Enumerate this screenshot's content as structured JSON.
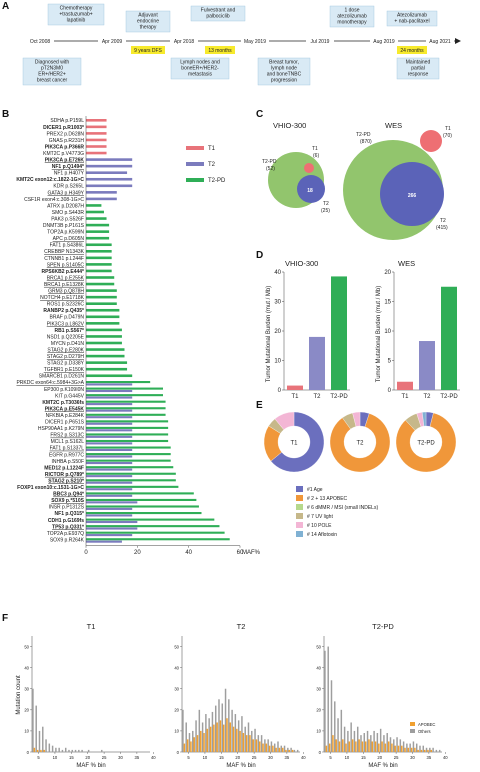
{
  "panels": {
    "A": "A",
    "B": "B",
    "C": "C",
    "D": "D",
    "E": "E",
    "F": "F"
  },
  "timeline": {
    "dates": [
      "Oct 2008",
      "Apr 2009",
      "Apr 2018",
      "May 2019",
      "Jul 2019",
      "Aug 2019",
      "Aug 2021"
    ],
    "top_events": [
      "Chemotherapy\n+trastuzumab+\nlapatinib",
      "Adjuvant\nendocrine\ntherapy",
      "Fulvestrant and\npalbociclib",
      "1 dose\natezolizumab\nmonotherapy",
      "Atezolizumab\n+ nab-paclitaxel"
    ],
    "bottom_events": [
      "Diagnosed with\npT2N3M0\nER+/HER2+\nbreast cancer",
      "Lymph nodes and\nboneER+/HER2-\nmetastasis",
      "Breast tumor,\nlymph node\nand boneTNBC\nprogression",
      "Maintained\npartial\nresponse"
    ],
    "durations": [
      "9 years DFS",
      "13 months",
      "24 months"
    ]
  },
  "panel_b": {
    "legend": [
      "T1",
      "T2",
      "T2-PD"
    ],
    "xlabel": "MAF%",
    "xticks": [
      "0",
      "20",
      "40",
      "60"
    ]
  },
  "panel_c": {
    "left_title": "VHIO-300",
    "right_title": "WES",
    "left": {
      "T1": "T1",
      "T1_count": "(6)",
      "T2PD": "T2-PD",
      "T2PD_count": "(52)",
      "T2": "T2",
      "T2_count": "(25)",
      "overlap": "18"
    },
    "right": {
      "T1": "T1",
      "T1_count": "(70)",
      "T2PD": "T2-PD",
      "T2PD_count": "(870)",
      "T2": "T2",
      "T2_count": "(415)",
      "overlap": "266"
    }
  },
  "panel_d": {
    "ylabel": "Tumor Mutational Burden (mut / Mb)",
    "left_title": "VHIO-300",
    "right_title": "WES"
  },
  "panel_e": {
    "donut_labels": [
      "T1",
      "T2",
      "T2-PD"
    ],
    "legend": [
      "#1 Age",
      "# 2 + 13 APOBEC",
      "# 6 dMMR / MSI (small INDELs)",
      "# 7 UV light",
      "# 10 POLE",
      "# 14 Aflotoxin"
    ]
  },
  "panel_f": {
    "titles": [
      "T1",
      "T2",
      "T2-PD"
    ],
    "ylabel": "Mutation count",
    "xlabel": "MAF % bin",
    "legend": [
      "APOBEC",
      "Others"
    ]
  },
  "chart_data": [
    {
      "type": "bar",
      "id": "B",
      "orientation": "horizontal",
      "xlabel": "MAF%",
      "xlim": [
        0,
        60
      ],
      "series_colors": {
        "T1": "#e8737a",
        "T2": "#7b7bbd",
        "T2-PD": "#2fae57"
      },
      "genes": [
        {
          "name": "SDHA p.P159L",
          "bold": false,
          "ul": false,
          "T1": 8
        },
        {
          "name": "DICER1 p.R1003*",
          "bold": true,
          "ul": false,
          "T1": 8
        },
        {
          "name": "PREX2 p.D628N",
          "bold": false,
          "ul": false,
          "T1": 8
        },
        {
          "name": "GNAS p.R231H",
          "bold": false,
          "ul": false,
          "T1": 8
        },
        {
          "name": "PIK3CA p.P366R",
          "bold": true,
          "ul": false,
          "T1": 8
        },
        {
          "name": "KMT2C p.V4773G",
          "bold": false,
          "ul": false,
          "T1": 8
        },
        {
          "name": "PIK3CA p.E726K",
          "bold": true,
          "ul": true,
          "T2": 18
        },
        {
          "name": "NF1 p.Q1494*",
          "bold": true,
          "ul": true,
          "T2": 18
        },
        {
          "name": "NF1 p.H407Y",
          "bold": false,
          "ul": false,
          "T2": 16
        },
        {
          "name": "KMT2C exon12:c.1822-1G>C",
          "bold": true,
          "ul": false,
          "T2": 18
        },
        {
          "name": "KDR p.S265L",
          "bold": false,
          "ul": false,
          "T2": 18
        },
        {
          "name": "GATA3 p.H349Y",
          "bold": false,
          "ul": true,
          "T2": 12
        },
        {
          "name": "CSF1R exon4:c.308-1G>C",
          "bold": false,
          "ul": false,
          "T2": 12
        },
        {
          "name": "ATRX p.D2087H",
          "bold": false,
          "ul": false,
          "T2-PD": 6
        },
        {
          "name": "SMO p.S443R",
          "bold": false,
          "ul": false,
          "T2-PD": 7
        },
        {
          "name": "PAK3 p.S526F",
          "bold": false,
          "ul": false,
          "T2-PD": 8
        },
        {
          "name": "DNMT3B p.P161S",
          "bold": false,
          "ul": false,
          "T2-PD": 9
        },
        {
          "name": "TOP2A p.K599N",
          "bold": false,
          "ul": false,
          "T2-PD": 9
        },
        {
          "name": "APC p.D605N",
          "bold": false,
          "ul": true,
          "T2-PD": 9
        },
        {
          "name": "FAT1 p.S4386L",
          "bold": false,
          "ul": false,
          "T2-PD": 10
        },
        {
          "name": "CREBBP N1343K",
          "bold": false,
          "ul": true,
          "T2-PD": 10
        },
        {
          "name": "CTNNB1 p.L244F",
          "bold": false,
          "ul": false,
          "T2-PD": 10
        },
        {
          "name": "SPEN p.S1405C",
          "bold": false,
          "ul": true,
          "T2-PD": 10
        },
        {
          "name": "RPS6KB2 p.E444*",
          "bold": true,
          "ul": false,
          "T2-PD": 10
        },
        {
          "name": "BRCA1 p.E255K",
          "bold": false,
          "ul": true,
          "T2-PD": 11
        },
        {
          "name": "BRCA1 p.E1328K",
          "bold": false,
          "ul": true,
          "T2-PD": 11
        },
        {
          "name": "GRM3 p.Q878H",
          "bold": false,
          "ul": true,
          "T2-PD": 12
        },
        {
          "name": "NOTCH4 p.E1718K",
          "bold": false,
          "ul": true,
          "T2-PD": 12
        },
        {
          "name": "ROS1 p.S2326C",
          "bold": false,
          "ul": false,
          "T2-PD": 12
        },
        {
          "name": "RANBP2 p.Q435*",
          "bold": true,
          "ul": false,
          "T2-PD": 13
        },
        {
          "name": "BRAF p.D479N",
          "bold": false,
          "ul": false,
          "T2-PD": 13
        },
        {
          "name": "PIK3C3 p.L862V",
          "bold": false,
          "ul": true,
          "T2-PD": 13
        },
        {
          "name": "RB1 p.S567*",
          "bold": true,
          "ul": false,
          "T2-PD": 14
        },
        {
          "name": "NSD1 p.Q2205E",
          "bold": false,
          "ul": false,
          "T2-PD": 14
        },
        {
          "name": "MYCN p.D41N",
          "bold": false,
          "ul": false,
          "T2-PD": 14
        },
        {
          "name": "STAG2 p.E280K",
          "bold": false,
          "ul": true,
          "T2-PD": 15
        },
        {
          "name": "STAG2 p.D279H",
          "bold": false,
          "ul": true,
          "T2-PD": 15
        },
        {
          "name": "STAG2 p.D338Y",
          "bold": false,
          "ul": false,
          "T2-PD": 16
        },
        {
          "name": "TGFBR1 p.E150K",
          "bold": false,
          "ul": true,
          "T2-PD": 16
        },
        {
          "name": "SMARCB1 p.D261N",
          "bold": false,
          "ul": false,
          "T2-PD": 18
        },
        {
          "name": "PRKDC exon64:c.5984+3G>A",
          "bold": false,
          "ul": true,
          "T2-PD": 25,
          "T2": 18
        },
        {
          "name": "EP300 p.K109I0N",
          "bold": false,
          "ul": false,
          "T2-PD": 30,
          "T2": 18
        },
        {
          "name": "KIT p.G445V",
          "bold": false,
          "ul": false,
          "T2-PD": 30,
          "T2": 18
        },
        {
          "name": "KMT2C p.T3036fs",
          "bold": true,
          "ul": false,
          "T2-PD": 31,
          "T2": 18
        },
        {
          "name": "PIK3CA p.E545K",
          "bold": true,
          "ul": true,
          "T2-PD": 31,
          "T2": 18
        },
        {
          "name": "NFKBIA p.E284K",
          "bold": false,
          "ul": false,
          "T2-PD": 31,
          "T2": 18
        },
        {
          "name": "DICER1 p.P651S",
          "bold": false,
          "ul": false,
          "T2-PD": 32,
          "T2": 18
        },
        {
          "name": "HSP90AA1 p.K279N",
          "bold": false,
          "ul": false,
          "T2-PD": 32,
          "T2": 18
        },
        {
          "name": "FRS2 p.S313C",
          "bold": false,
          "ul": true,
          "T2-PD": 32,
          "T2": 18
        },
        {
          "name": "MCL1 p.S162L",
          "bold": false,
          "ul": false,
          "T2-PD": 32,
          "T2": 18
        },
        {
          "name": "FAT1 p.S1337L",
          "bold": false,
          "ul": true,
          "T2-PD": 33,
          "T2": 18
        },
        {
          "name": "EGFR p.R977C",
          "bold": false,
          "ul": false,
          "T2-PD": 33,
          "T2": 18
        },
        {
          "name": "INHBA p.S50F",
          "bold": false,
          "ul": false,
          "T2-PD": 33,
          "T2": 18
        },
        {
          "name": "MED12 p.L1224F",
          "bold": true,
          "ul": false,
          "T2-PD": 34,
          "T2": 18
        },
        {
          "name": "RICTOR p.Q789*",
          "bold": true,
          "ul": true,
          "T2-PD": 35,
          "T2": 18
        },
        {
          "name": "STAG2 p.S210*",
          "bold": true,
          "ul": true,
          "T2-PD": 35,
          "T2": 18
        },
        {
          "name": "FOXP1 exon10:c.1531-1G>C",
          "bold": true,
          "ul": false,
          "T2-PD": 36,
          "T2": 18
        },
        {
          "name": "BBC3 p.Q94*",
          "bold": true,
          "ul": true,
          "T2-PD": 42,
          "T2": 18
        },
        {
          "name": "SOX9 p.*510S",
          "bold": true,
          "ul": true,
          "T2-PD": 43,
          "T2": 20
        },
        {
          "name": "INSR p.P1312S",
          "bold": false,
          "ul": false,
          "T2-PD": 44,
          "T2": 18
        },
        {
          "name": "NF1 p.Q315*",
          "bold": true,
          "ul": false,
          "T2-PD": 45,
          "T2": 18
        },
        {
          "name": "CDH1 p.G169fs",
          "bold": true,
          "ul": false,
          "T2-PD": 50,
          "T2": 20
        },
        {
          "name": "TP53 p.Q331*",
          "bold": true,
          "ul": true,
          "T2-PD": 52,
          "T2": 20
        },
        {
          "name": "TOP2A p.E937Q",
          "bold": false,
          "ul": false,
          "T2-PD": 54,
          "T2": 18
        },
        {
          "name": "SOX9 p.R264K",
          "bold": false,
          "ul": false,
          "T2-PD": 56,
          "T2": 14
        }
      ]
    },
    {
      "type": "bar",
      "id": "D-left",
      "title": "VHIO-300",
      "categories": [
        "T1",
        "T2",
        "T2-PD"
      ],
      "values": [
        1.5,
        18,
        38.5
      ],
      "ylim": [
        0,
        40
      ],
      "yticks": [
        0,
        10,
        20,
        30,
        40
      ],
      "colors": [
        "#e8737a",
        "#8a8ac6",
        "#2fae57"
      ]
    },
    {
      "type": "bar",
      "id": "D-right",
      "title": "WES",
      "categories": [
        "T1",
        "T2",
        "T2-PD"
      ],
      "values": [
        1.4,
        8.3,
        17.5
      ],
      "ylim": [
        0,
        20
      ],
      "yticks": [
        0,
        5,
        10,
        15,
        20
      ],
      "colors": [
        "#e8737a",
        "#8a8ac6",
        "#2fae57"
      ]
    },
    {
      "type": "pie",
      "id": "E",
      "colors": [
        "#6b6fbe",
        "#f0973a",
        "#b6d98c",
        "#c6b88a",
        "#f3b6d5",
        "#80b1d3"
      ],
      "donuts": [
        {
          "label": "T1",
          "values": [
            64,
            20,
            0,
            5,
            11,
            0
          ]
        },
        {
          "label": "T2",
          "values": [
            5,
            85,
            0,
            6,
            4,
            0
          ]
        },
        {
          "label": "T2-PD",
          "values": [
            4,
            84,
            0,
            7,
            3,
            2
          ]
        }
      ]
    },
    {
      "type": "bar",
      "id": "F",
      "ylabel": "Mutation count",
      "xlabel": "MAF % bin",
      "xticks": [
        5,
        10,
        15,
        20,
        25,
        30,
        35,
        40
      ],
      "yticks": [
        0,
        10,
        20,
        30,
        40,
        50
      ],
      "ylim": [
        0,
        55
      ],
      "panels": [
        {
          "title": "T1",
          "others": [
            30,
            22,
            10,
            12,
            6,
            4,
            3,
            2,
            2,
            1,
            2,
            1,
            1,
            1,
            1,
            1,
            0,
            1,
            0,
            0,
            0,
            1,
            0,
            0,
            0,
            0,
            0,
            0,
            0,
            0,
            0,
            0,
            0,
            0,
            0,
            0
          ],
          "apobec": [
            2,
            1,
            1,
            1,
            0,
            0,
            0,
            0,
            0,
            0,
            0,
            0,
            0,
            0,
            0,
            0,
            0,
            0,
            0,
            0,
            0,
            0,
            0,
            0,
            0,
            0,
            0,
            0,
            0,
            0,
            0,
            0,
            0,
            0,
            0,
            0
          ]
        },
        {
          "title": "T2",
          "others": [
            20,
            14,
            9,
            10,
            15,
            20,
            14,
            18,
            16,
            19,
            22,
            25,
            23,
            30,
            25,
            20,
            18,
            15,
            17,
            12,
            14,
            10,
            11,
            8,
            8,
            6,
            6,
            5,
            4,
            5,
            3,
            3,
            2,
            2,
            1,
            1
          ],
          "apobec": [
            4,
            6,
            5,
            7,
            8,
            10,
            9,
            11,
            12,
            13,
            14,
            15,
            13,
            16,
            14,
            12,
            11,
            10,
            9,
            8,
            8,
            6,
            6,
            5,
            4,
            4,
            3,
            3,
            2,
            2,
            2,
            1,
            1,
            1,
            0,
            0
          ]
        },
        {
          "title": "T2-PD",
          "others": [
            48,
            50,
            34,
            24,
            16,
            20,
            12,
            10,
            14,
            10,
            12,
            8,
            9,
            10,
            8,
            10,
            9,
            11,
            8,
            9,
            7,
            6,
            7,
            6,
            5,
            4,
            4,
            5,
            4,
            3,
            3,
            2,
            2,
            2,
            1,
            1
          ],
          "apobec": [
            3,
            4,
            8,
            6,
            5,
            6,
            4,
            5,
            6,
            5,
            6,
            5,
            5,
            6,
            5,
            5,
            4,
            5,
            4,
            5,
            4,
            3,
            3,
            3,
            2,
            2,
            2,
            2,
            1,
            1,
            1,
            1,
            1,
            0,
            0,
            0
          ]
        }
      ]
    }
  ]
}
